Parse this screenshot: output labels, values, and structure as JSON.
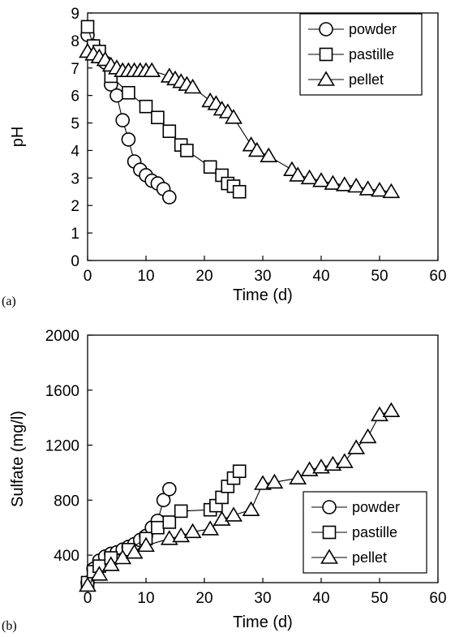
{
  "chart_data": [
    {
      "type": "line",
      "panel_label": "(a)",
      "xlabel": "Time (d)",
      "ylabel": "pH",
      "xlim": [
        0,
        60
      ],
      "ylim": [
        0,
        9
      ],
      "xticks": [
        "0",
        "10",
        "20",
        "30",
        "40",
        "50",
        "60"
      ],
      "yticks": [
        "0",
        "1",
        "2",
        "3",
        "4",
        "5",
        "6",
        "7",
        "8",
        "9"
      ],
      "grid": false,
      "legend_position": "top-right",
      "series": [
        {
          "name": "powder",
          "marker": "circle",
          "x": [
            0,
            1,
            2,
            3,
            4,
            5,
            6,
            7,
            8,
            9,
            10,
            11,
            12,
            13,
            14
          ],
          "y": [
            8.2,
            7.8,
            7.5,
            7.2,
            6.4,
            6.0,
            5.1,
            4.4,
            3.6,
            3.3,
            3.1,
            2.9,
            2.8,
            2.6,
            2.3
          ]
        },
        {
          "name": "pastille",
          "marker": "square",
          "x": [
            0,
            1,
            2,
            4,
            7,
            10,
            12,
            14,
            16,
            17,
            21,
            23,
            24,
            25,
            26
          ],
          "y": [
            8.5,
            7.8,
            7.6,
            6.7,
            6.1,
            5.6,
            5.2,
            4.7,
            4.2,
            4.0,
            3.4,
            3.1,
            2.8,
            2.7,
            2.5
          ]
        },
        {
          "name": "pellet",
          "marker": "triangle",
          "x": [
            0,
            1,
            2,
            3,
            4,
            5,
            6,
            7,
            8,
            9,
            10,
            11,
            14,
            15,
            16,
            17,
            18,
            21,
            22,
            23,
            24,
            25,
            28,
            29,
            31,
            35,
            36,
            38,
            40,
            42,
            44,
            46,
            48,
            50,
            52
          ],
          "y": [
            7.6,
            7.5,
            7.4,
            7.3,
            7.1,
            7.0,
            6.9,
            6.9,
            6.9,
            6.9,
            6.9,
            6.9,
            6.7,
            6.6,
            6.5,
            6.4,
            6.3,
            5.8,
            5.7,
            5.5,
            5.4,
            5.2,
            4.2,
            4.0,
            3.8,
            3.3,
            3.1,
            3.0,
            2.9,
            2.8,
            2.75,
            2.7,
            2.6,
            2.55,
            2.5
          ]
        }
      ]
    },
    {
      "type": "line",
      "panel_label": "(b)",
      "xlabel": "Time (d)",
      "ylabel": "Sulfate (mg/l)",
      "xlim": [
        0,
        60
      ],
      "ylim": [
        200,
        2000
      ],
      "xticks": [
        "0",
        "10",
        "20",
        "30",
        "40",
        "50",
        "60"
      ],
      "yticks": [
        "400",
        "800",
        "1200",
        "1600",
        "2000"
      ],
      "grid": false,
      "legend_position": "bottom-right",
      "series": [
        {
          "name": "powder",
          "marker": "circle",
          "x": [
            0,
            1,
            2,
            3,
            4,
            5,
            6,
            7,
            8,
            9,
            10,
            11,
            12,
            13,
            14
          ],
          "y": [
            200,
            300,
            360,
            390,
            410,
            420,
            440,
            460,
            480,
            510,
            540,
            600,
            650,
            800,
            880
          ]
        },
        {
          "name": "pastille",
          "marker": "square",
          "x": [
            0,
            1,
            2,
            4,
            7,
            10,
            12,
            14,
            16,
            21,
            22,
            23,
            24,
            25,
            26
          ],
          "y": [
            200,
            280,
            320,
            380,
            440,
            520,
            600,
            640,
            720,
            730,
            760,
            820,
            900,
            960,
            1010
          ]
        },
        {
          "name": "pellet",
          "marker": "triangle",
          "x": [
            0,
            2,
            4,
            6,
            8,
            10,
            14,
            16,
            18,
            21,
            23,
            25,
            28,
            30,
            32,
            36,
            38,
            40,
            42,
            44,
            46,
            48,
            50,
            52
          ],
          "y": [
            180,
            260,
            330,
            380,
            420,
            470,
            520,
            540,
            570,
            590,
            660,
            690,
            730,
            920,
            930,
            960,
            1020,
            1040,
            1060,
            1080,
            1180,
            1260,
            1420,
            1450
          ]
        }
      ]
    }
  ]
}
